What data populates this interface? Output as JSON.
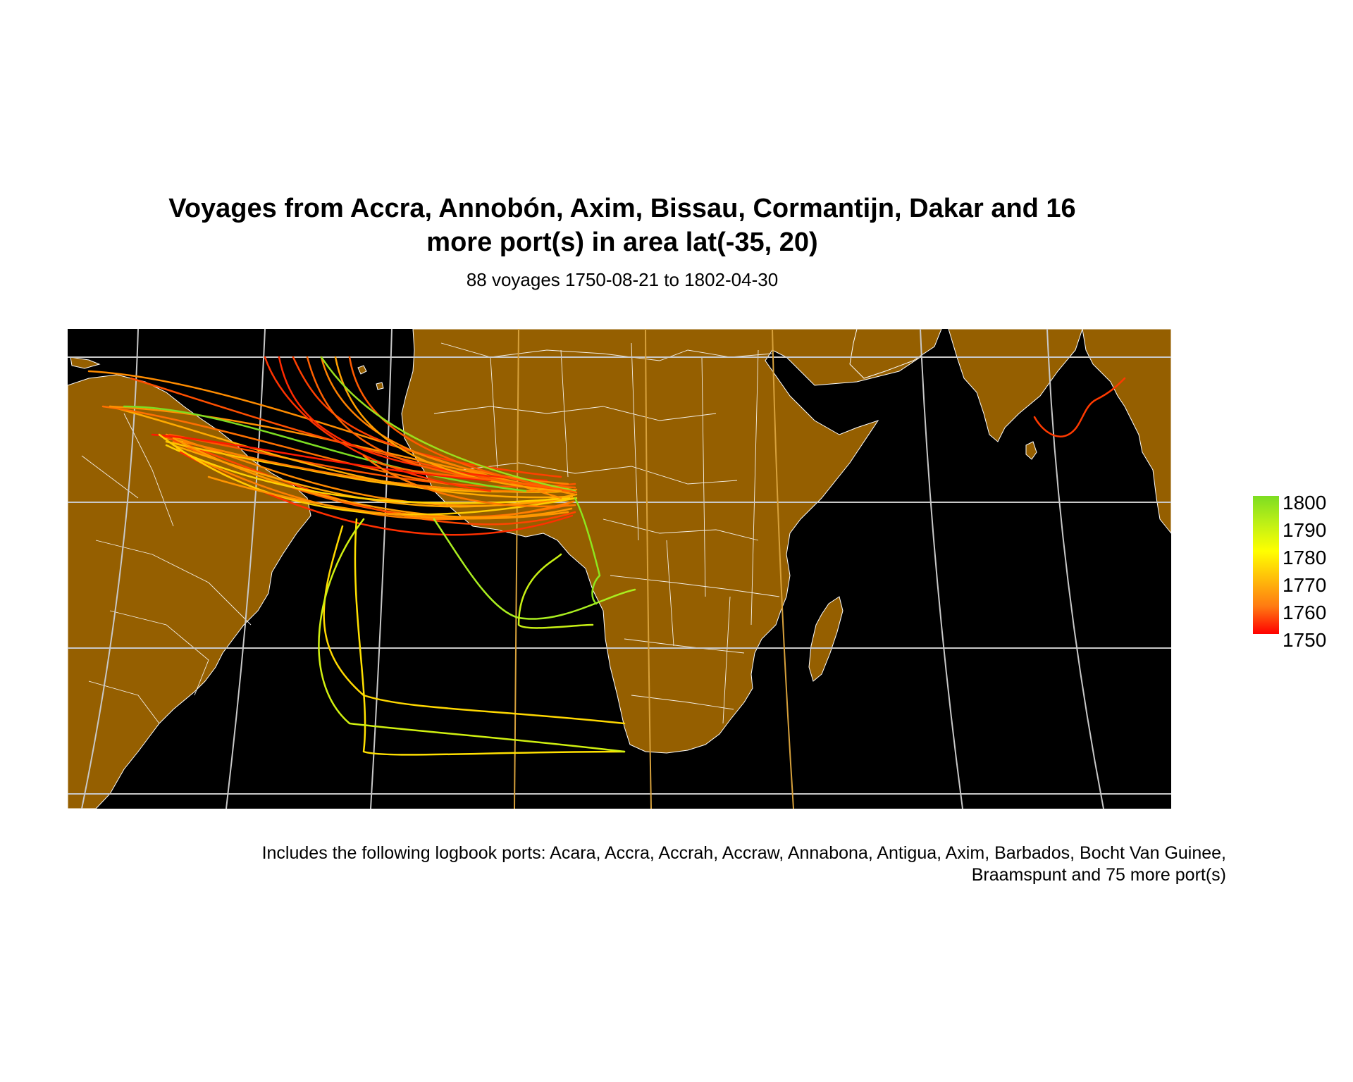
{
  "title": {
    "line1": "Voyages from Accra, Annobón, Axim, Bissau, Cormantijn, Dakar and 16",
    "line2": "more port(s) in area lat(-35, 20)"
  },
  "subtitle": "88 voyages 1750-08-21 to 1802-04-30",
  "caption": {
    "line1": "Includes the following logbook ports: Acara, Accra, Accrah, Accraw, Annabona, Antigua, Axim, Barbados, Bocht Van Guinee,",
    "line2": "Braamspunt and 75 more port(s)"
  },
  "legend": {
    "ticks": [
      "1800",
      "1790",
      "1780",
      "1770",
      "1760",
      "1750"
    ],
    "colors": [
      "#7ddd22",
      "#bff016",
      "#ffff00",
      "#ffbd0a",
      "#ff7a12",
      "#ff0000"
    ]
  },
  "map_style": {
    "ocean": "#000000",
    "land": "#955f00",
    "border": "#ffffff",
    "graticule": "#c8c8c8",
    "meridian_accent": "#d7a13c"
  }
}
